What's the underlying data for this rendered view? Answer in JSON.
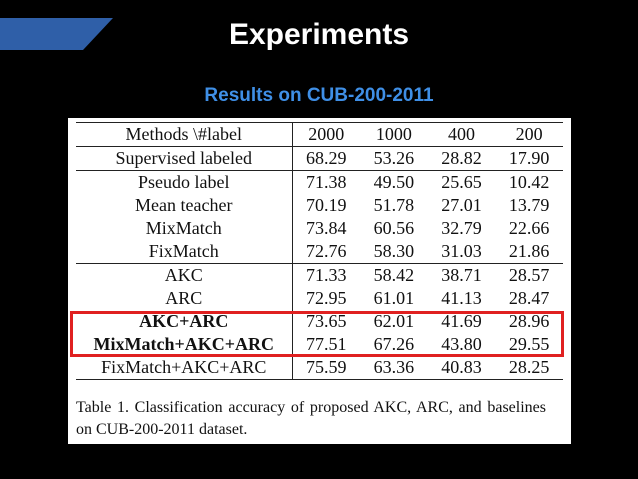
{
  "slide": {
    "title": "Experiments",
    "subtitle": "Results on CUB-200-2011",
    "accent_color": "#2f5fa8",
    "highlight_color": "#e02020"
  },
  "table": {
    "columns": [
      "Methods \\#label",
      "2000",
      "1000",
      "400",
      "200"
    ],
    "rows": [
      {
        "method": "Supervised labeled",
        "values": [
          "68.29",
          "53.26",
          "28.82",
          "17.90"
        ],
        "bold": false
      },
      {
        "method": "Pseudo label",
        "values": [
          "71.38",
          "49.50",
          "25.65",
          "10.42"
        ],
        "bold": false
      },
      {
        "method": "Mean teacher",
        "values": [
          "70.19",
          "51.78",
          "27.01",
          "13.79"
        ],
        "bold": false
      },
      {
        "method": "MixMatch",
        "values": [
          "73.84",
          "60.56",
          "32.79",
          "22.66"
        ],
        "bold": false
      },
      {
        "method": "FixMatch",
        "values": [
          "72.76",
          "58.30",
          "31.03",
          "21.86"
        ],
        "bold": false
      },
      {
        "method": "AKC",
        "values": [
          "71.33",
          "58.42",
          "38.71",
          "28.57"
        ],
        "bold": false
      },
      {
        "method": "ARC",
        "values": [
          "72.95",
          "61.01",
          "41.13",
          "28.47"
        ],
        "bold": false
      },
      {
        "method": "AKC+ARC",
        "values": [
          "73.65",
          "62.01",
          "41.69",
          "28.96"
        ],
        "bold": true
      },
      {
        "method": "MixMatch+AKC+ARC",
        "values": [
          "77.51",
          "67.26",
          "43.80",
          "29.55"
        ],
        "bold": true
      },
      {
        "method": "FixMatch+AKC+ARC",
        "values": [
          "75.59",
          "63.36",
          "40.83",
          "28.25"
        ],
        "bold": false
      }
    ],
    "caption": "Table 1. Classification accuracy of proposed AKC, ARC, and baselines on CUB-200-2011 dataset."
  }
}
